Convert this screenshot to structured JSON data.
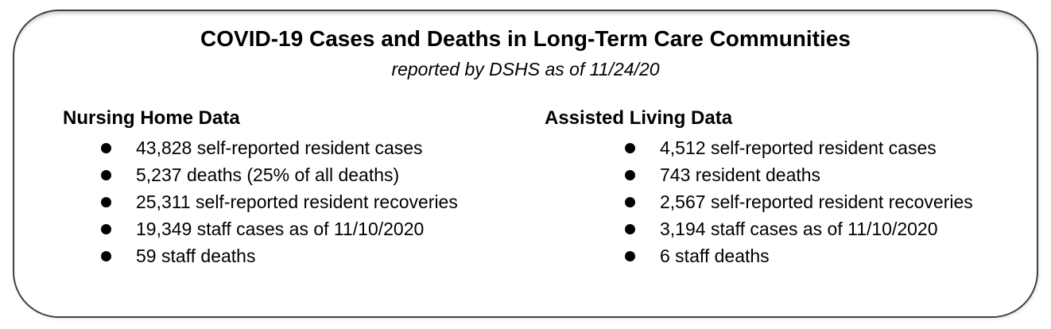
{
  "header": {
    "title": "COVID-19 Cases and Deaths in Long-Term Care Communities",
    "subtitle": "reported by DSHS as of 11/24/20"
  },
  "columns": [
    {
      "heading": "Nursing Home Data",
      "items": [
        "43,828 self-reported resident cases",
        "5,237 deaths (25% of all deaths)",
        "25,311 self-reported resident recoveries",
        "19,349 staff cases as of 11/10/2020",
        "59 staff deaths"
      ]
    },
    {
      "heading": "Assisted Living Data",
      "items": [
        "4,512 self-reported resident cases",
        "743 resident deaths",
        "2,567 self-reported resident recoveries",
        "3,194 staff cases as of 11/10/2020",
        "6 staff deaths"
      ]
    }
  ],
  "colors": {
    "border": "#3f3f46",
    "text": "#000000",
    "background": "#ffffff"
  }
}
